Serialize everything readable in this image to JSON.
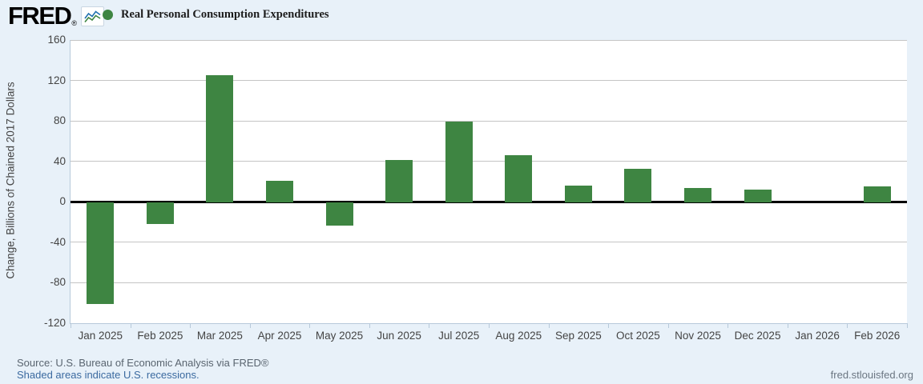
{
  "header": {
    "logo_text": "FRED",
    "registered_mark": "®",
    "legend": {
      "label": "Real Personal Consumption Expenditures",
      "marker_color": "#3e8542"
    }
  },
  "chart_data": {
    "type": "bar",
    "title": "Real Personal Consumption Expenditures",
    "xlabel": "",
    "ylabel": "Change, Billions of Chained 2017 Dollars",
    "ylim": [
      -120,
      160
    ],
    "yticks": [
      160,
      120,
      80,
      40,
      0,
      -40,
      -80,
      -120
    ],
    "grid": true,
    "legend_position": "top-left",
    "categories": [
      "Jan 2025",
      "Feb 2025",
      "Mar 2025",
      "Apr 2025",
      "May 2025",
      "Jun 2025",
      "Jul 2025",
      "Aug 2025",
      "Sep 2025",
      "Oct 2025",
      "Nov 2025",
      "Dec 2025",
      "Jan 2026",
      "Feb 2026"
    ],
    "values": [
      -100,
      -21,
      125,
      21,
      -23,
      41,
      79,
      46,
      16,
      33,
      14,
      12,
      null,
      15
    ],
    "bar_color": "#3e8542",
    "zero_line_color": "#000000",
    "gridline_color": "#c5c5c5"
  },
  "footer": {
    "source": "Source: U.S. Bureau of Economic Analysis via FRED®",
    "recession_note": "Shaded areas indicate U.S. recessions.",
    "site": "fred.stlouisfed.org"
  },
  "colors": {
    "page_background": "#e8f1f9",
    "plot_background": "#ffffff",
    "axis_text": "#444444",
    "link_blue": "#3b6aa0"
  }
}
